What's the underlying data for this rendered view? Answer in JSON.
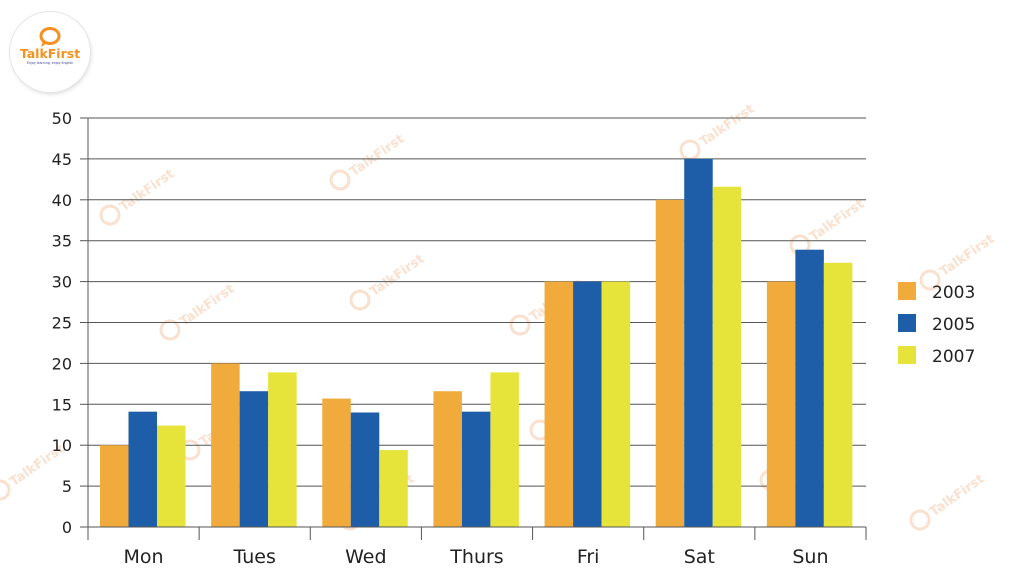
{
  "brand": {
    "name": "TalkFirst",
    "tagline": "Enjoy learning, enjoy English",
    "accent": "#f39221",
    "secondary": "#3b3b8f"
  },
  "watermark": {
    "text": "TalkFirst"
  },
  "chart_data": {
    "type": "bar",
    "title": "",
    "xlabel": "",
    "ylabel": "",
    "ylim": [
      0,
      50
    ],
    "yticks": [
      0,
      5,
      10,
      15,
      20,
      25,
      30,
      35,
      40,
      45,
      50
    ],
    "grid": true,
    "legend_position": "right",
    "categories": [
      "Mon",
      "Tues",
      "Wed",
      "Thurs",
      "Fri",
      "Sat",
      "Sun"
    ],
    "series": [
      {
        "name": "2003",
        "color": "#f0ab3c",
        "values": [
          10,
          20,
          15.7,
          16.6,
          30,
          40,
          30
        ]
      },
      {
        "name": "2005",
        "color": "#1e5ea8",
        "values": [
          14.1,
          16.6,
          14,
          14.1,
          30,
          45,
          33.9
        ]
      },
      {
        "name": "2007",
        "color": "#e6e33a",
        "values": [
          12.4,
          18.9,
          9.4,
          18.9,
          30,
          41.6,
          32.3
        ]
      }
    ]
  }
}
